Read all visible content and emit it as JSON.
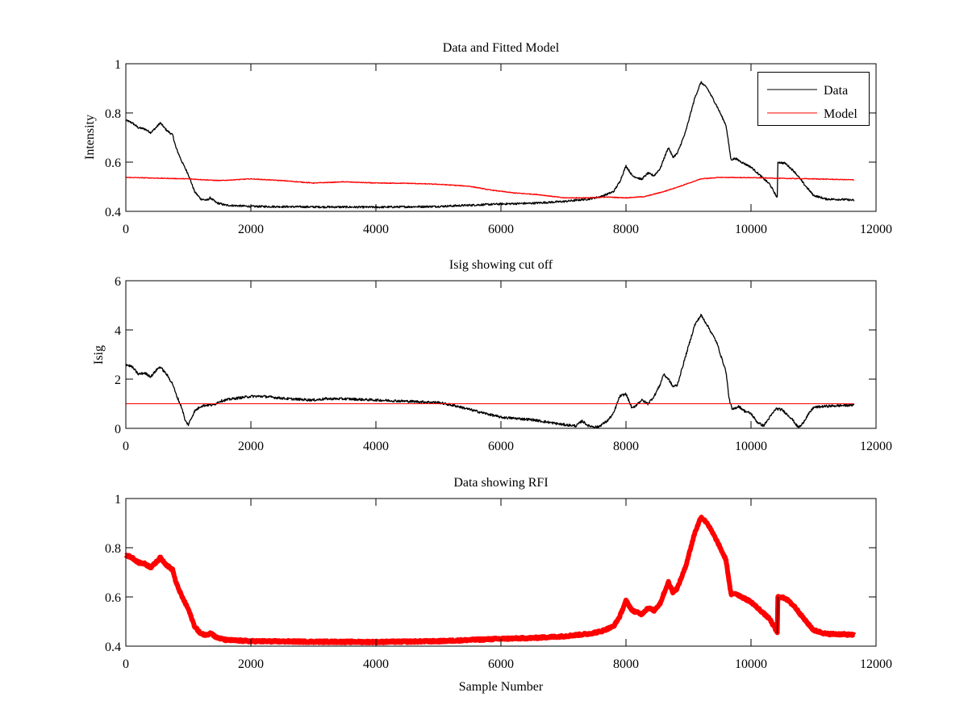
{
  "chart_data": [
    {
      "type": "line",
      "title": "Data and Fitted Model",
      "xlabel": "",
      "ylabel": "Intensity",
      "xlim": [
        0,
        12000
      ],
      "ylim": [
        0.4,
        1.0
      ],
      "xticks": [
        0,
        2000,
        4000,
        6000,
        8000,
        10000,
        12000
      ],
      "yticks": [
        0.4,
        0.6,
        0.8,
        1
      ],
      "xtick_labels": [
        "0",
        "2000",
        "4000",
        "6000",
        "8000",
        "10000",
        "12000"
      ],
      "ytick_labels": [
        "0.4",
        "0.6",
        "0.8",
        "1"
      ],
      "grid": false,
      "legend": {
        "placement": "top-right",
        "entries": [
          "Data",
          "Model"
        ]
      },
      "series": [
        {
          "name": "Data",
          "color": "#000000",
          "noise": 0.004,
          "x": [
            0,
            100,
            200,
            300,
            400,
            500,
            550,
            650,
            750,
            800,
            900,
            1000,
            1100,
            1200,
            1300,
            1350,
            1450,
            1600,
            2000,
            3000,
            4000,
            5000,
            6000,
            6500,
            7000,
            7400,
            7600,
            7800,
            7900,
            8000,
            8100,
            8250,
            8350,
            8450,
            8550,
            8600,
            8680,
            8750,
            8820,
            8950,
            9100,
            9200,
            9300,
            9450,
            9600,
            9680,
            9750,
            9850,
            10000,
            10150,
            10300,
            10420,
            10430,
            10550,
            10700,
            10850,
            11000,
            11200,
            11500,
            11650
          ],
          "y": [
            0.77,
            0.76,
            0.74,
            0.735,
            0.72,
            0.745,
            0.76,
            0.73,
            0.71,
            0.66,
            0.6,
            0.55,
            0.48,
            0.45,
            0.445,
            0.455,
            0.435,
            0.425,
            0.42,
            0.418,
            0.417,
            0.42,
            0.43,
            0.433,
            0.44,
            0.45,
            0.46,
            0.48,
            0.52,
            0.585,
            0.545,
            0.53,
            0.555,
            0.545,
            0.575,
            0.61,
            0.66,
            0.62,
            0.635,
            0.72,
            0.86,
            0.925,
            0.9,
            0.83,
            0.75,
            0.61,
            0.615,
            0.6,
            0.58,
            0.545,
            0.51,
            0.455,
            0.6,
            0.595,
            0.56,
            0.51,
            0.465,
            0.45,
            0.448,
            0.445
          ]
        },
        {
          "name": "Model",
          "color": "#ff0000",
          "noise": 0.0015,
          "x": [
            0,
            500,
            1000,
            1500,
            2000,
            2500,
            3000,
            3500,
            4000,
            4500,
            5000,
            5500,
            5800,
            6200,
            6600,
            7000,
            7400,
            7700,
            8000,
            8300,
            8600,
            8900,
            9200,
            9500,
            10000,
            10500,
            11000,
            11650
          ],
          "y": [
            0.538,
            0.535,
            0.532,
            0.525,
            0.532,
            0.525,
            0.515,
            0.52,
            0.515,
            0.514,
            0.51,
            0.502,
            0.488,
            0.475,
            0.468,
            0.455,
            0.455,
            0.458,
            0.455,
            0.46,
            0.48,
            0.505,
            0.532,
            0.538,
            0.537,
            0.534,
            0.532,
            0.528
          ]
        }
      ]
    },
    {
      "type": "line",
      "title": "Isig showing cut off",
      "xlabel": "",
      "ylabel": "Isig",
      "xlim": [
        0,
        12000
      ],
      "ylim": [
        0,
        6
      ],
      "xticks": [
        0,
        2000,
        4000,
        6000,
        8000,
        10000,
        12000
      ],
      "yticks": [
        0,
        2,
        4,
        6
      ],
      "xtick_labels": [
        "0",
        "2000",
        "4000",
        "6000",
        "8000",
        "10000",
        "12000"
      ],
      "ytick_labels": [
        "0",
        "2",
        "4",
        "6"
      ],
      "grid": false,
      "series": [
        {
          "name": "Isig",
          "color": "#000000",
          "noise": 0.05,
          "x": [
            0,
            100,
            200,
            300,
            400,
            500,
            550,
            650,
            750,
            800,
            900,
            950,
            1000,
            1100,
            1200,
            1300,
            1400,
            1500,
            1700,
            2000,
            2200,
            2600,
            3000,
            3200,
            3500,
            4000,
            4500,
            5000,
            5300,
            5600,
            6000,
            6500,
            7000,
            7200,
            7300,
            7400,
            7550,
            7700,
            7800,
            7900,
            8000,
            8100,
            8250,
            8350,
            8450,
            8550,
            8600,
            8680,
            8750,
            8820,
            8950,
            9100,
            9200,
            9300,
            9450,
            9600,
            9650,
            9700,
            9800,
            9900,
            10000,
            10100,
            10200,
            10400,
            10500,
            10650,
            10750,
            10800,
            10900,
            11000,
            11200,
            11650
          ],
          "y": [
            2.6,
            2.5,
            2.2,
            2.25,
            2.1,
            2.4,
            2.5,
            2.2,
            1.8,
            1.4,
            0.8,
            0.3,
            0.15,
            0.7,
            0.9,
            0.95,
            0.95,
            1.1,
            1.2,
            1.3,
            1.3,
            1.2,
            1.15,
            1.2,
            1.2,
            1.15,
            1.1,
            1.05,
            0.9,
            0.7,
            0.45,
            0.35,
            0.15,
            0.1,
            0.3,
            0.1,
            0.05,
            0.3,
            0.6,
            1.3,
            1.4,
            0.8,
            1.15,
            1.0,
            1.3,
            1.8,
            2.2,
            2.0,
            1.7,
            1.75,
            2.9,
            4.2,
            4.6,
            4.2,
            3.5,
            2.3,
            1.2,
            0.75,
            0.9,
            0.7,
            0.6,
            0.25,
            0.1,
            0.8,
            0.75,
            0.4,
            0.05,
            0.1,
            0.5,
            0.85,
            0.9,
            0.95
          ]
        },
        {
          "name": "Cut off",
          "color": "#ff0000",
          "noise": 0,
          "x": [
            0,
            11650
          ],
          "y": [
            1,
            1
          ]
        }
      ]
    },
    {
      "type": "line",
      "title": "Data showing RFI",
      "xlabel": "Sample Number",
      "ylabel": "",
      "xlim": [
        0,
        12000
      ],
      "ylim": [
        0.4,
        1.0
      ],
      "xticks": [
        0,
        2000,
        4000,
        6000,
        8000,
        10000,
        12000
      ],
      "yticks": [
        0.4,
        0.6,
        0.8,
        1
      ],
      "xtick_labels": [
        "0",
        "2000",
        "4000",
        "6000",
        "8000",
        "10000",
        "12000"
      ],
      "ytick_labels": [
        "0.4",
        "0.6",
        "0.8",
        "1"
      ],
      "grid": false,
      "series": [
        {
          "name": "Data",
          "color": "#000000",
          "noise": 0.004,
          "x": [
            10420,
            10430
          ],
          "y": [
            0.455,
            0.6
          ]
        },
        {
          "name": "RFI",
          "color": "#ff0000",
          "noise": 0.004,
          "marker": "thick",
          "x": [
            0,
            100,
            200,
            300,
            400,
            500,
            550,
            650,
            750,
            800,
            900,
            1000,
            1100,
            1200,
            1300,
            1350,
            1450,
            1600,
            2000,
            3000,
            4000,
            5000,
            6000,
            6500,
            7000,
            7400,
            7600,
            7800,
            7900,
            8000,
            8100,
            8250,
            8350,
            8450,
            8550,
            8600,
            8680,
            8750,
            8820,
            8950,
            9100,
            9200,
            9300,
            9450,
            9600,
            9680,
            9750,
            9850,
            10000,
            10150,
            10300,
            10420,
            10430,
            10550,
            10700,
            10850,
            11000,
            11200,
            11500,
            11650
          ],
          "y": [
            0.77,
            0.76,
            0.74,
            0.735,
            0.72,
            0.745,
            0.76,
            0.73,
            0.71,
            0.66,
            0.6,
            0.55,
            0.48,
            0.45,
            0.445,
            0.455,
            0.435,
            0.425,
            0.42,
            0.418,
            0.417,
            0.42,
            0.43,
            0.433,
            0.44,
            0.45,
            0.46,
            0.48,
            0.52,
            0.585,
            0.545,
            0.53,
            0.555,
            0.545,
            0.575,
            0.61,
            0.66,
            0.62,
            0.635,
            0.72,
            0.86,
            0.925,
            0.9,
            0.83,
            0.75,
            0.61,
            0.615,
            0.6,
            0.58,
            0.545,
            0.51,
            0.455,
            0.6,
            0.595,
            0.56,
            0.51,
            0.465,
            0.45,
            0.448,
            0.445
          ]
        }
      ]
    }
  ]
}
